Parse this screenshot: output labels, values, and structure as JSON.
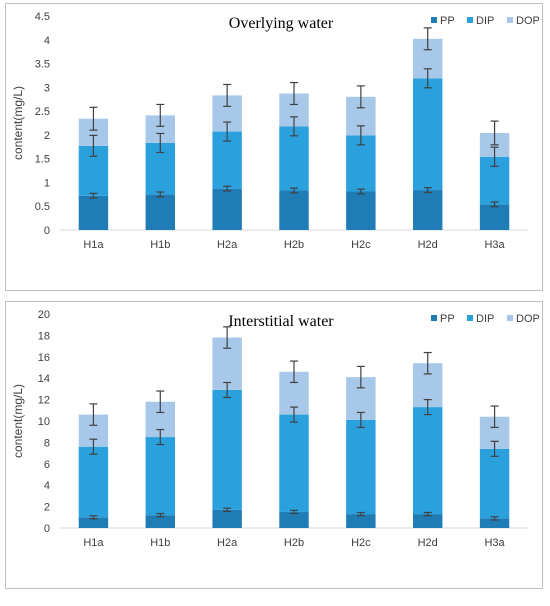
{
  "colors": {
    "PP": "#1f7cb4",
    "DIP": "#2aa0dd",
    "DOP": "#a7c8e8"
  },
  "chart_data": [
    {
      "type": "bar",
      "stacked": true,
      "title": "Overlying water",
      "xlabel": "",
      "ylabel": "content(mg/L)",
      "ylim": [
        0,
        4.5
      ],
      "yticks": [
        "0",
        "0.5",
        "1",
        "1.5",
        "2",
        "2.5",
        "3",
        "3.5",
        "4",
        "4.5"
      ],
      "ytick_values": [
        0,
        0.5,
        1,
        1.5,
        2,
        2.5,
        3,
        3.5,
        4,
        4.5
      ],
      "categories": [
        "H1a",
        "H1b",
        "H2a",
        "H2b",
        "H2c",
        "H2d",
        "H3a"
      ],
      "legend_position": "top-right",
      "series": [
        {
          "name": "PP",
          "values": [
            0.72,
            0.75,
            0.87,
            0.83,
            0.81,
            0.84,
            0.54
          ],
          "errors": [
            0.05,
            0.05,
            0.05,
            0.05,
            0.05,
            0.05,
            0.05
          ]
        },
        {
          "name": "DIP",
          "values": [
            1.05,
            1.08,
            1.2,
            1.35,
            1.18,
            2.35,
            1.0
          ],
          "errors": [
            0.22,
            0.2,
            0.2,
            0.2,
            0.2,
            0.2,
            0.2
          ]
        },
        {
          "name": "DOP",
          "values": [
            0.57,
            0.58,
            0.76,
            0.69,
            0.81,
            0.83,
            0.5
          ],
          "errors": [
            0.24,
            0.23,
            0.23,
            0.23,
            0.23,
            0.23,
            0.25
          ]
        }
      ]
    },
    {
      "type": "bar",
      "stacked": true,
      "title": "Interstitial water",
      "xlabel": "",
      "ylabel": "content(mg/L)",
      "ylim": [
        0,
        20
      ],
      "yticks": [
        "0",
        "2",
        "4",
        "6",
        "8",
        "10",
        "12",
        "14",
        "16",
        "18",
        "20"
      ],
      "ytick_values": [
        0,
        2,
        4,
        6,
        8,
        10,
        12,
        14,
        16,
        18,
        20
      ],
      "categories": [
        "H1a",
        "H1b",
        "H2a",
        "H2b",
        "H2c",
        "H2d",
        "H3a"
      ],
      "legend_position": "top-right",
      "series": [
        {
          "name": "PP",
          "values": [
            1.0,
            1.2,
            1.7,
            1.5,
            1.3,
            1.3,
            0.9
          ],
          "errors": [
            0.15,
            0.15,
            0.15,
            0.15,
            0.15,
            0.15,
            0.15
          ]
        },
        {
          "name": "DIP",
          "values": [
            6.6,
            7.3,
            11.2,
            9.1,
            8.8,
            10.0,
            6.5
          ],
          "errors": [
            0.7,
            0.7,
            0.7,
            0.7,
            0.7,
            0.7,
            0.7
          ]
        },
        {
          "name": "DOP",
          "values": [
            3.0,
            3.3,
            4.9,
            4.0,
            4.0,
            4.1,
            3.0
          ],
          "errors": [
            1.0,
            1.0,
            1.0,
            1.0,
            1.0,
            1.0,
            1.0
          ]
        }
      ]
    }
  ]
}
